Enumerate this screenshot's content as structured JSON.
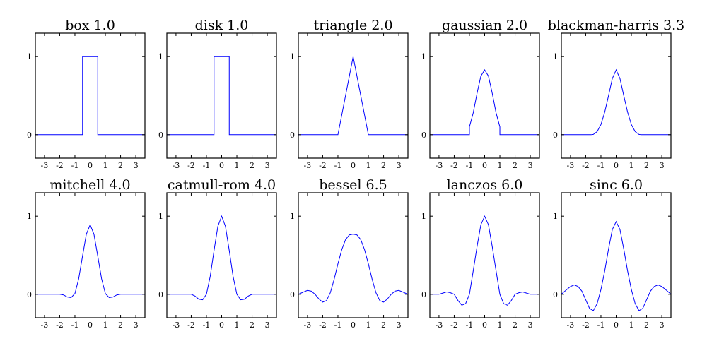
{
  "figure": {
    "background": "#ffffff",
    "line_color": "#0000ff"
  },
  "chart_data": [
    {
      "type": "line",
      "title": "box 1.0",
      "xlim": [
        -3.6,
        3.6
      ],
      "ylim": [
        -0.3,
        1.3
      ],
      "xticks": [
        "-3",
        "-2",
        "-1",
        "0",
        "1",
        "2",
        "3"
      ],
      "yticks": [
        "0",
        "1"
      ],
      "x": [
        -3.6,
        -0.5,
        -0.5,
        0.5,
        0.5,
        3.6
      ],
      "y": [
        0,
        0,
        1,
        1,
        0,
        0
      ]
    },
    {
      "type": "line",
      "title": "disk 1.0",
      "xlim": [
        -3.6,
        3.6
      ],
      "ylim": [
        -0.3,
        1.3
      ],
      "xticks": [
        "-3",
        "-2",
        "-1",
        "0",
        "1",
        "2",
        "3"
      ],
      "yticks": [
        "0",
        "1"
      ],
      "x": [
        -3.6,
        -0.5,
        -0.5,
        0.5,
        0.5,
        3.6
      ],
      "y": [
        0,
        0,
        1,
        1,
        0,
        0
      ]
    },
    {
      "type": "line",
      "title": "triangle 2.0",
      "xlim": [
        -3.6,
        3.6
      ],
      "ylim": [
        -0.3,
        1.3
      ],
      "xticks": [
        "-3",
        "-2",
        "-1",
        "0",
        "1",
        "2",
        "3"
      ],
      "yticks": [
        "0",
        "1"
      ],
      "x": [
        -3.6,
        -1,
        0,
        1,
        3.6
      ],
      "y": [
        0,
        0,
        1,
        0,
        0
      ]
    },
    {
      "type": "line",
      "title": "gaussian 2.0",
      "xlim": [
        -3.6,
        3.6
      ],
      "ylim": [
        -0.3,
        1.3
      ],
      "xticks": [
        "-3",
        "-2",
        "-1",
        "0",
        "1",
        "2",
        "3"
      ],
      "yticks": [
        "0",
        "1"
      ],
      "x": [
        -3.6,
        -1,
        -1,
        -0.75,
        -0.5,
        -0.25,
        0,
        0.25,
        0.5,
        0.75,
        1,
        1,
        3.6
      ],
      "y": [
        0,
        0,
        0.1,
        0.28,
        0.53,
        0.75,
        0.83,
        0.75,
        0.53,
        0.28,
        0.1,
        0,
        0
      ]
    },
    {
      "type": "line",
      "title": "blackman-harris 3.3",
      "xlim": [
        -3.6,
        3.6
      ],
      "ylim": [
        -0.3,
        1.3
      ],
      "xticks": [
        "-3",
        "-2",
        "-1",
        "0",
        "1",
        "2",
        "3"
      ],
      "yticks": [
        "0",
        "1"
      ],
      "x": [
        -3.6,
        -1.65,
        -1.5,
        -1.25,
        -1,
        -0.75,
        -0.5,
        -0.25,
        0,
        0.25,
        0.5,
        0.75,
        1,
        1.25,
        1.5,
        1.65,
        3.6
      ],
      "y": [
        0,
        0,
        0.004,
        0.04,
        0.13,
        0.29,
        0.5,
        0.72,
        0.83,
        0.72,
        0.5,
        0.29,
        0.13,
        0.04,
        0.004,
        0,
        0
      ]
    },
    {
      "type": "line",
      "title": "mitchell 4.0",
      "xlim": [
        -3.6,
        3.6
      ],
      "ylim": [
        -0.3,
        1.3
      ],
      "xticks": [
        "-3",
        "-2",
        "-1",
        "0",
        "1",
        "2",
        "3"
      ],
      "yticks": [
        "0",
        "1"
      ],
      "x": [
        -3.6,
        -2,
        -1.75,
        -1.5,
        -1.25,
        -1,
        -0.75,
        -0.5,
        -0.25,
        0,
        0.25,
        0.5,
        0.75,
        1,
        1.25,
        1.5,
        1.75,
        2,
        3.6
      ],
      "y": [
        0,
        0,
        -0.008,
        -0.035,
        -0.042,
        0.01,
        0.2,
        0.49,
        0.77,
        0.89,
        0.77,
        0.49,
        0.2,
        0.01,
        -0.042,
        -0.035,
        -0.008,
        0,
        0
      ]
    },
    {
      "type": "line",
      "title": "catmull-rom 4.0",
      "xlim": [
        -3.6,
        3.6
      ],
      "ylim": [
        -0.3,
        1.3
      ],
      "xticks": [
        "-3",
        "-2",
        "-1",
        "0",
        "1",
        "2",
        "3"
      ],
      "yticks": [
        "0",
        "1"
      ],
      "x": [
        -3.6,
        -2,
        -1.75,
        -1.5,
        -1.25,
        -1,
        -0.75,
        -0.5,
        -0.25,
        0,
        0.25,
        0.5,
        0.75,
        1,
        1.25,
        1.5,
        1.75,
        2,
        3.6
      ],
      "y": [
        0,
        0,
        -0.023,
        -0.063,
        -0.07,
        0,
        0.23,
        0.56,
        0.87,
        1,
        0.87,
        0.56,
        0.23,
        0,
        -0.07,
        -0.063,
        -0.023,
        0,
        0
      ]
    },
    {
      "type": "line",
      "title": "bessel 6.5",
      "xlim": [
        -3.6,
        3.6
      ],
      "ylim": [
        -0.3,
        1.3
      ],
      "xticks": [
        "-3",
        "-2",
        "-1",
        "0",
        "1",
        "2",
        "3"
      ],
      "yticks": [
        "0",
        "1"
      ],
      "x": [
        -3.6,
        -3.25,
        -3,
        -2.75,
        -2.5,
        -2.25,
        -2,
        -1.75,
        -1.5,
        -1.25,
        -1,
        -0.75,
        -0.5,
        -0.25,
        0,
        0.25,
        0.5,
        0.75,
        1,
        1.25,
        1.5,
        1.75,
        2,
        2.25,
        2.5,
        2.75,
        3,
        3.25,
        3.6
      ],
      "y": [
        0,
        0.03,
        0.05,
        0.04,
        0.0,
        -0.06,
        -0.1,
        -0.08,
        0.02,
        0.19,
        0.39,
        0.57,
        0.7,
        0.76,
        0.77,
        0.76,
        0.7,
        0.57,
        0.39,
        0.19,
        0.02,
        -0.08,
        -0.1,
        -0.06,
        0.0,
        0.04,
        0.05,
        0.03,
        0
      ]
    },
    {
      "type": "line",
      "title": "lanczos 6.0",
      "xlim": [
        -3.6,
        3.6
      ],
      "ylim": [
        -0.3,
        1.3
      ],
      "xticks": [
        "-3",
        "-2",
        "-1",
        "0",
        "1",
        "2",
        "3"
      ],
      "yticks": [
        "0",
        "1"
      ],
      "x": [
        -3.6,
        -3,
        -2.75,
        -2.5,
        -2.25,
        -2,
        -1.75,
        -1.5,
        -1.25,
        -1,
        -0.75,
        -0.5,
        -0.25,
        0,
        0.25,
        0.5,
        0.75,
        1,
        1.25,
        1.5,
        1.75,
        2,
        2.25,
        2.5,
        2.75,
        3,
        3.6
      ],
      "y": [
        0,
        0,
        0.015,
        0.03,
        0.02,
        0,
        -0.08,
        -0.14,
        -0.12,
        0,
        0.3,
        0.61,
        0.89,
        1,
        0.89,
        0.61,
        0.3,
        0,
        -0.12,
        -0.14,
        -0.08,
        0,
        0.02,
        0.03,
        0.015,
        0,
        0
      ]
    },
    {
      "type": "line",
      "title": "sinc 6.0",
      "xlim": [
        -3.6,
        3.6
      ],
      "ylim": [
        -0.3,
        1.3
      ],
      "xticks": [
        "-3",
        "-2",
        "-1",
        "0",
        "1",
        "2",
        "3"
      ],
      "yticks": [
        "0",
        "1"
      ],
      "x": [
        -3.6,
        -3.25,
        -3,
        -2.75,
        -2.5,
        -2.25,
        -2,
        -1.75,
        -1.5,
        -1.25,
        -1,
        -0.75,
        -0.5,
        -0.25,
        0,
        0.25,
        0.5,
        0.75,
        1,
        1.25,
        1.5,
        1.75,
        2,
        2.25,
        2.5,
        2.75,
        3,
        3.25,
        3.6
      ],
      "y": [
        0,
        0.06,
        0.1,
        0.12,
        0.1,
        0.04,
        -0.07,
        -0.18,
        -0.21,
        -0.12,
        0.06,
        0.3,
        0.58,
        0.83,
        0.93,
        0.83,
        0.58,
        0.3,
        0.06,
        -0.12,
        -0.21,
        -0.18,
        -0.07,
        0.04,
        0.1,
        0.12,
        0.1,
        0.06,
        0
      ]
    }
  ]
}
